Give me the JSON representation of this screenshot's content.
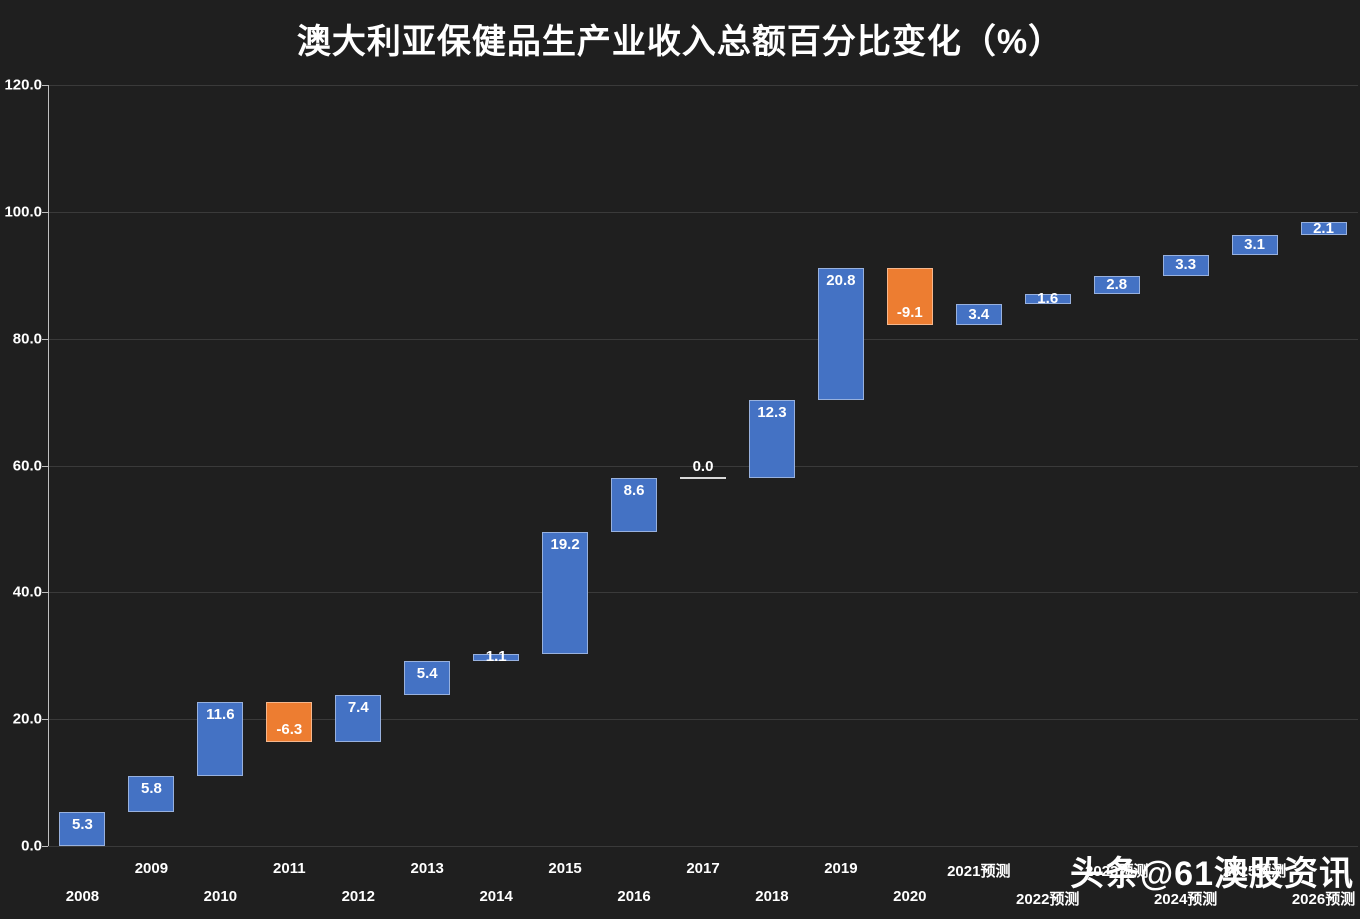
{
  "chart_data": {
    "type": "waterfall",
    "title": "澳大利亚保健品生产业收入总额百分比变化（%）",
    "categories": [
      "2008",
      "2009",
      "2010",
      "2011",
      "2012",
      "2013",
      "2014",
      "2015",
      "2016",
      "2017",
      "2018",
      "2019",
      "2020",
      "2021预测",
      "2022预测",
      "2023预测",
      "2024预测",
      "2025预测",
      "2026预测"
    ],
    "values": [
      5.3,
      5.8,
      11.6,
      -6.3,
      7.4,
      5.4,
      1.1,
      19.2,
      8.6,
      0.0,
      12.3,
      20.8,
      -9.1,
      3.4,
      1.6,
      2.8,
      3.3,
      3.1,
      2.1
    ],
    "cumulative_end_values": [
      5.3,
      11.1,
      22.7,
      16.4,
      23.8,
      29.2,
      30.3,
      49.5,
      58.1,
      58.1,
      70.4,
      91.2,
      82.1,
      85.5,
      87.1,
      89.9,
      93.2,
      96.3,
      98.4
    ],
    "ylim": [
      0,
      120
    ],
    "yticks": [
      0.0,
      20.0,
      40.0,
      60.0,
      80.0,
      100.0,
      120.0
    ],
    "grid": true,
    "legend": "none",
    "colors": {
      "increase": "#4472C4",
      "decrease": "#ED7D31",
      "background": "#1F1F1F",
      "gridline": "#3A3A3A",
      "axis": "#BFBFBF",
      "label": "#FFFFFF"
    }
  },
  "watermark": {
    "text": "头条@61澳股资讯"
  }
}
